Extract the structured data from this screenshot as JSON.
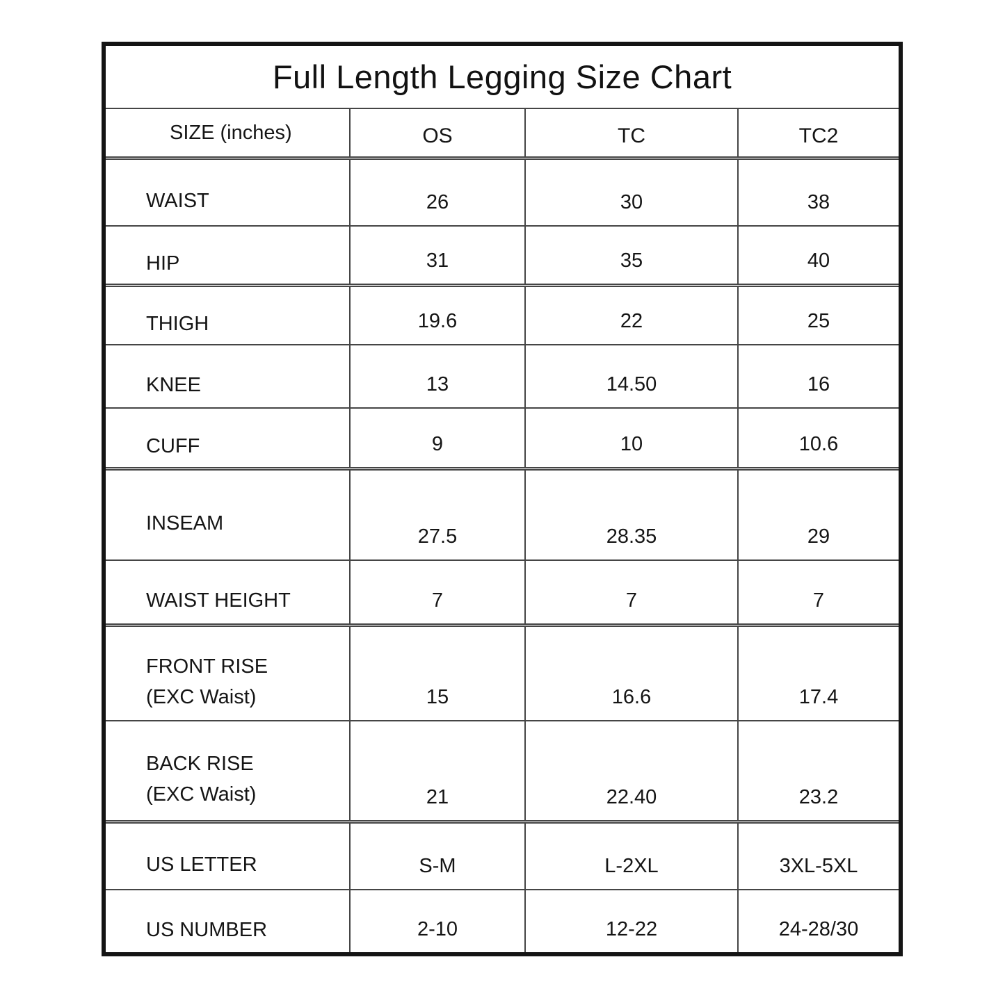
{
  "title": "Full Length Legging Size Chart",
  "table": {
    "header": {
      "size_label": "SIZE (inches)",
      "columns": [
        "OS",
        "TC",
        "TC2"
      ]
    },
    "rows": [
      {
        "label": "WAIST",
        "values": [
          "26",
          "30",
          "38"
        ]
      },
      {
        "label": "HIP",
        "values": [
          "31",
          "35",
          "40"
        ]
      },
      {
        "label": "THIGH",
        "values": [
          "19.6",
          "22",
          "25"
        ]
      },
      {
        "label": "KNEE",
        "values": [
          "13",
          "14.50",
          "16"
        ]
      },
      {
        "label": "CUFF",
        "values": [
          "9",
          "10",
          "10.6"
        ]
      },
      {
        "label": "INSEAM",
        "values": [
          "27.5",
          "28.35",
          "29"
        ]
      },
      {
        "label": "WAIST HEIGHT",
        "values": [
          "7",
          "7",
          "7"
        ]
      },
      {
        "label": "FRONT RISE",
        "label_line2": "(EXC Waist)",
        "values": [
          "15",
          "16.6",
          "17.4"
        ]
      },
      {
        "label": "BACK RISE",
        "label_line2": "(EXC Waist)",
        "values": [
          "21",
          "22.40",
          "23.2"
        ]
      },
      {
        "label": "US LETTER",
        "values": [
          "S-M",
          "L-2XL",
          "3XL-5XL"
        ]
      },
      {
        "label": "US NUMBER",
        "values": [
          "2-10",
          "12-22",
          "24-28/30"
        ]
      }
    ]
  },
  "colors": {
    "outer_border": "#141414",
    "grid_line": "#454545",
    "text": "#161616",
    "background": "#ffffff"
  },
  "chart_data": {
    "type": "table",
    "title": "Full Length Legging Size Chart",
    "units": "inches",
    "columns": [
      "SIZE (inches)",
      "OS",
      "TC",
      "TC2"
    ],
    "rows": [
      [
        "WAIST",
        "26",
        "30",
        "38"
      ],
      [
        "HIP",
        "31",
        "35",
        "40"
      ],
      [
        "THIGH",
        "19.6",
        "22",
        "25"
      ],
      [
        "KNEE",
        "13",
        "14.50",
        "16"
      ],
      [
        "CUFF",
        "9",
        "10",
        "10.6"
      ],
      [
        "INSEAM",
        "27.5",
        "28.35",
        "29"
      ],
      [
        "WAIST HEIGHT",
        "7",
        "7",
        "7"
      ],
      [
        "FRONT RISE (EXC Waist)",
        "15",
        "16.6",
        "17.4"
      ],
      [
        "BACK RISE (EXC Waist)",
        "21",
        "22.40",
        "23.2"
      ],
      [
        "US LETTER",
        "S-M",
        "L-2XL",
        "3XL-5XL"
      ],
      [
        "US NUMBER",
        "2-10",
        "12-22",
        "24-28/30"
      ]
    ],
    "layout": {
      "grid": true,
      "title_position": "top-center",
      "value_columns": 3
    }
  }
}
